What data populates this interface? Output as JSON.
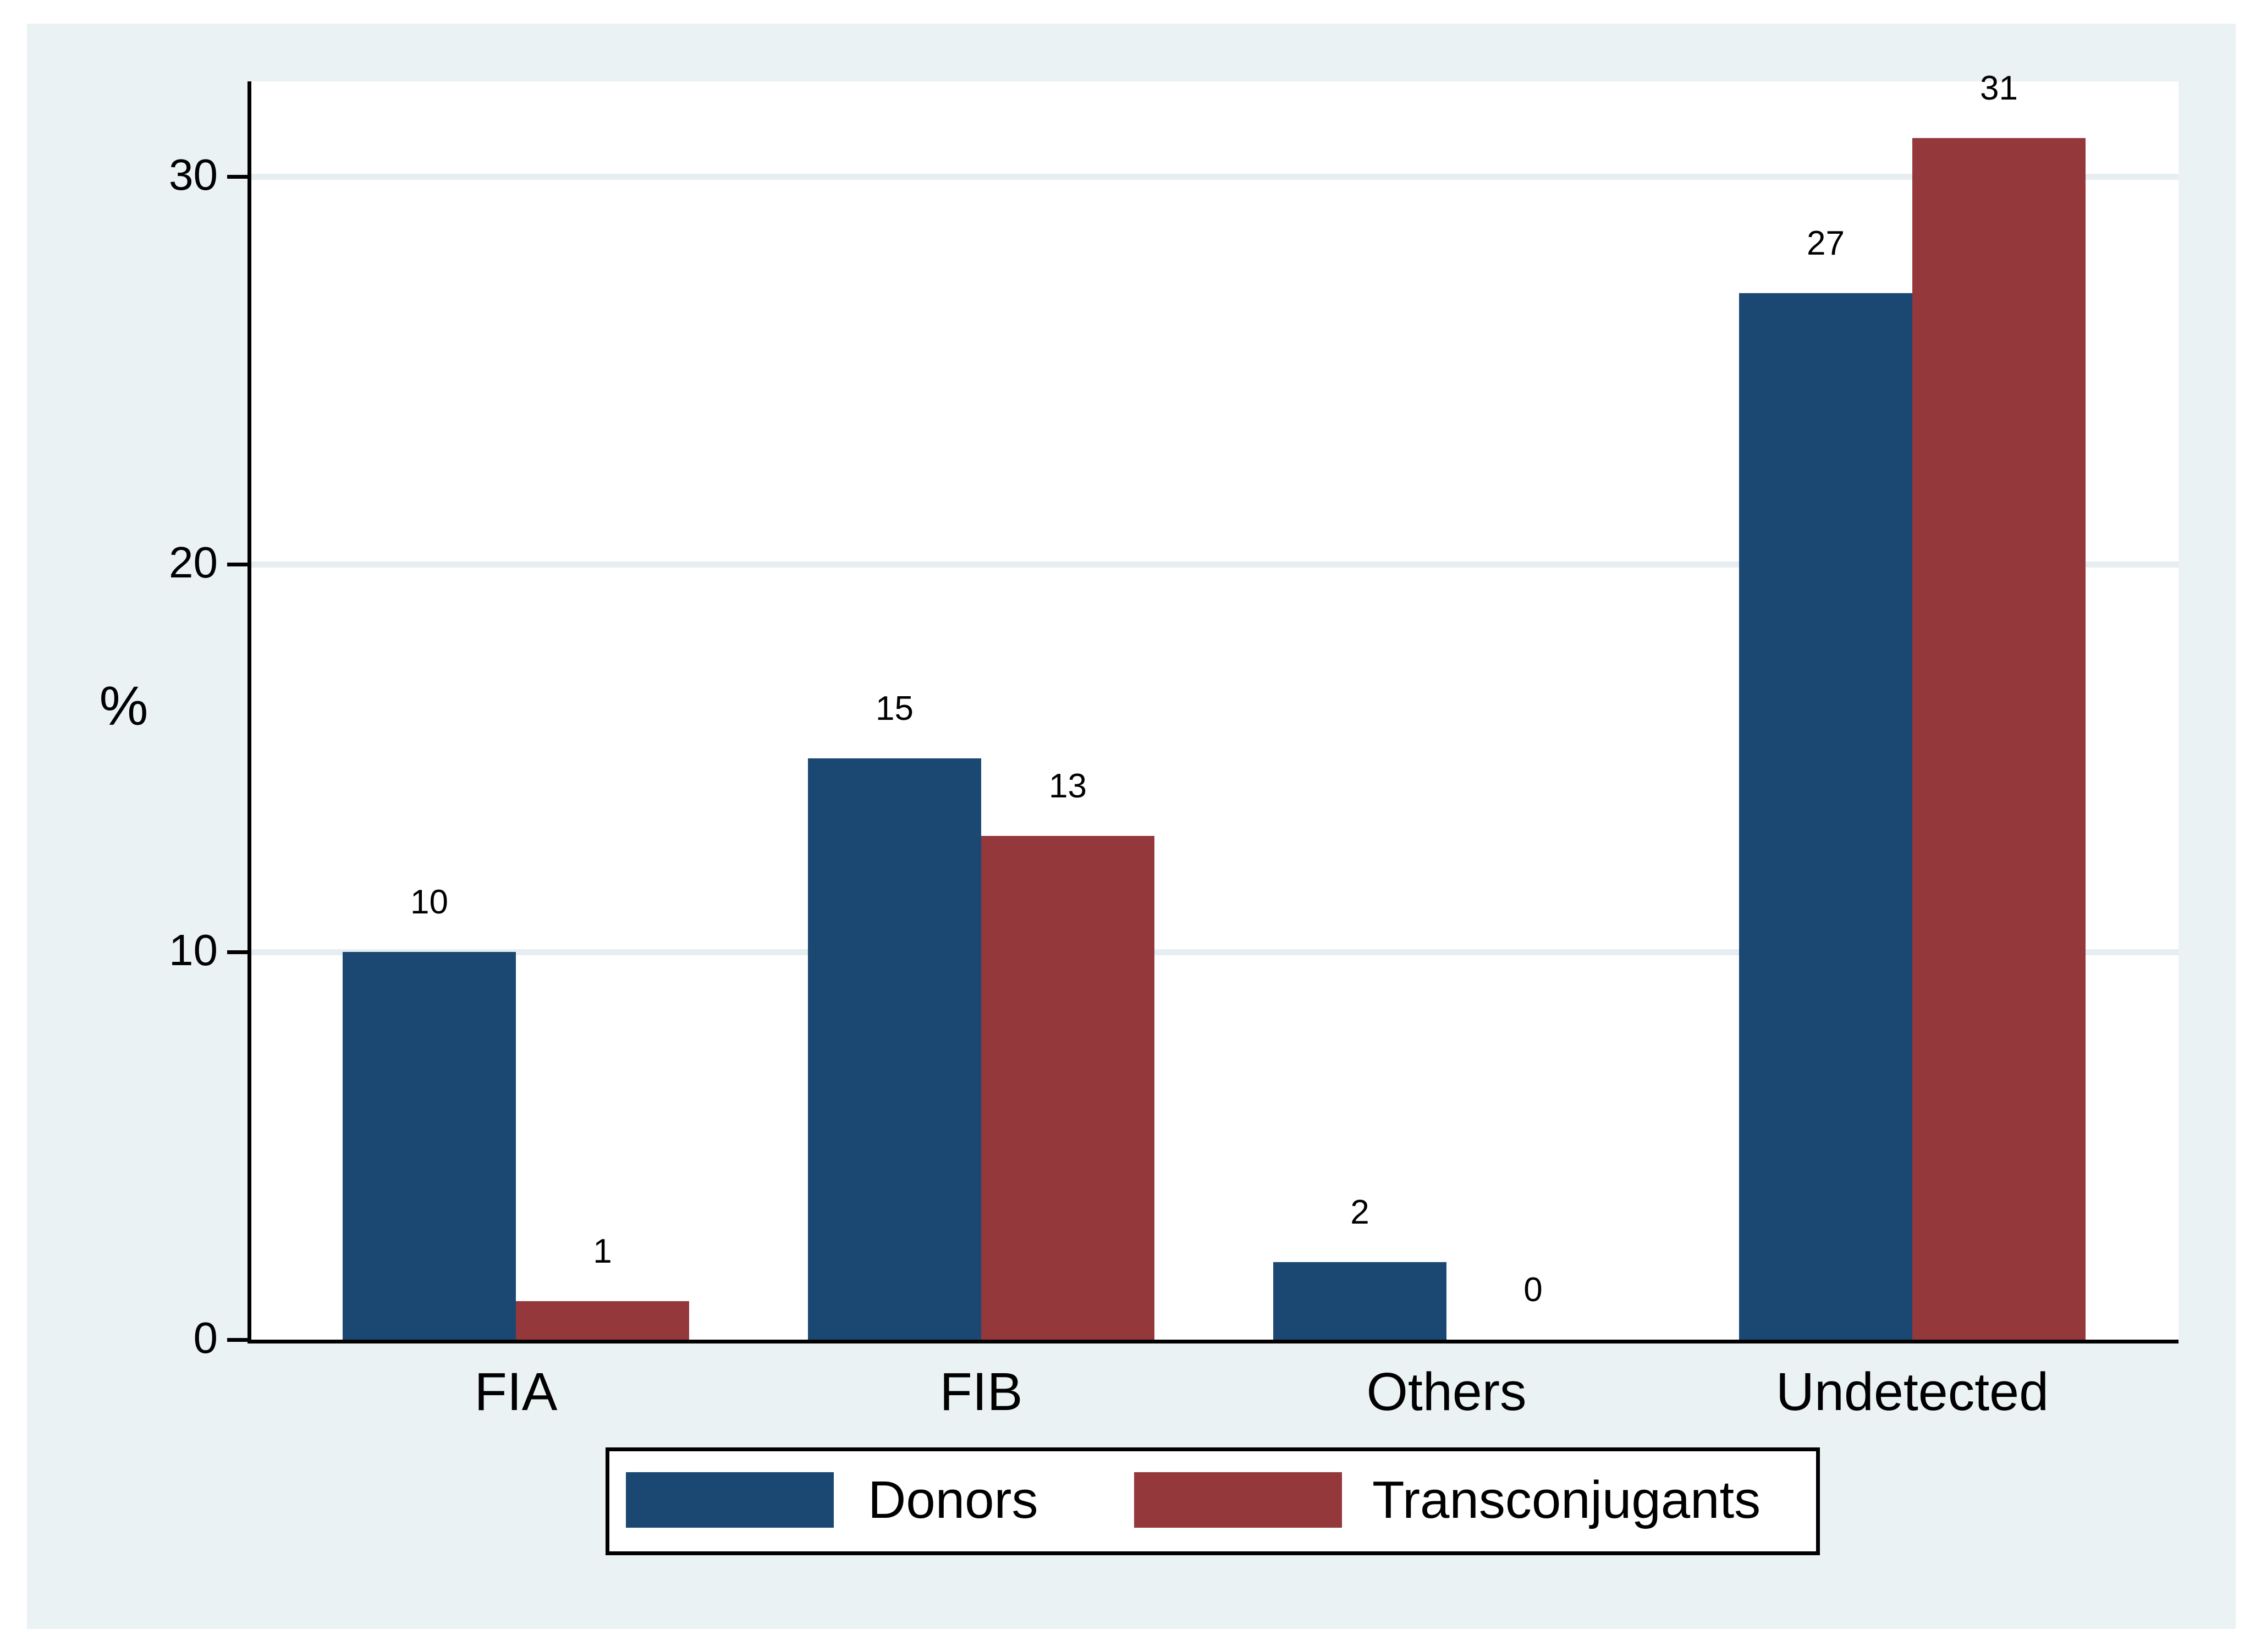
{
  "figure": {
    "background": "#FFFFFF",
    "card_background": "#EAF2F3",
    "plot_background": "#FFFFFF",
    "axis_color": "#000000",
    "grid_color": "#E7EEF1",
    "text_color": "#000000"
  },
  "chart_data": {
    "type": "bar",
    "title": "",
    "categories": [
      "FIA",
      "FIB",
      "Others",
      "Undetected"
    ],
    "series": [
      {
        "name": "Donors",
        "color": "#1B4872",
        "values": [
          10,
          15,
          2,
          27
        ]
      },
      {
        "name": "Transconjugants",
        "color": "#94383C",
        "values": [
          1,
          13,
          0,
          31
        ]
      }
    ],
    "bar_value_labels": true,
    "xlabel": "",
    "ylabel": "%",
    "yticks": [
      0,
      10,
      20,
      30
    ],
    "ylim": [
      0,
      32.5
    ],
    "grid": "horizontal",
    "gridlines_at": [
      10,
      20,
      30
    ],
    "legend": {
      "position": "bottom-center",
      "entries": [
        "Donors",
        "Transconjugants"
      ]
    }
  }
}
